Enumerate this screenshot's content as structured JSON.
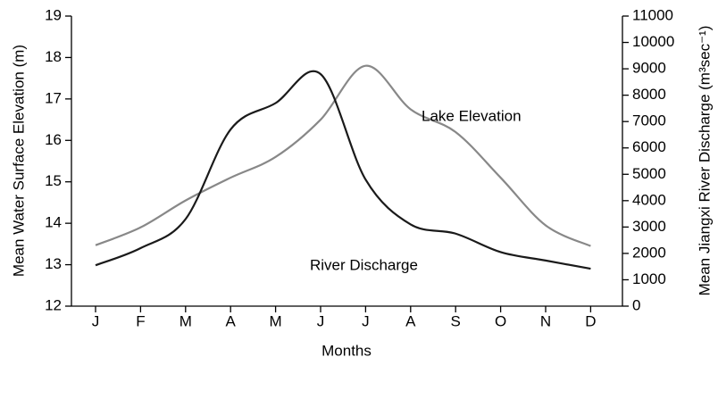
{
  "chart_data": {
    "type": "line",
    "x_label": "Months",
    "y_label": "Mean Water Surface Elevation (m)",
    "y2_label": "Mean Jiangxi River Discharge (m³sec⁻¹)",
    "categories": [
      "J",
      "F",
      "M",
      "A",
      "M",
      "J",
      "J",
      "A",
      "S",
      "O",
      "N",
      "D"
    ],
    "ylim": [
      12,
      19
    ],
    "yticks": [
      12,
      13,
      14,
      15,
      16,
      17,
      18,
      19
    ],
    "y2lim": [
      0,
      11000
    ],
    "y2ticks": [
      0,
      1000,
      2000,
      3000,
      4000,
      5000,
      6000,
      7000,
      8000,
      9000,
      10000,
      11000
    ],
    "series": [
      {
        "name": "Lake Elevation",
        "color": "#888888",
        "values": [
          13.47,
          13.9,
          14.55,
          15.1,
          15.6,
          16.5,
          17.8,
          16.75,
          16.2,
          15.1,
          13.95,
          13.45
        ]
      },
      {
        "name": "River Discharge",
        "color": "#1a1a1a",
        "axis": "y2",
        "values": [
          1550,
          2200,
          3300,
          6700,
          7700,
          8800,
          4800,
          3100,
          2750,
          2050,
          1730,
          1420
        ]
      }
    ]
  }
}
